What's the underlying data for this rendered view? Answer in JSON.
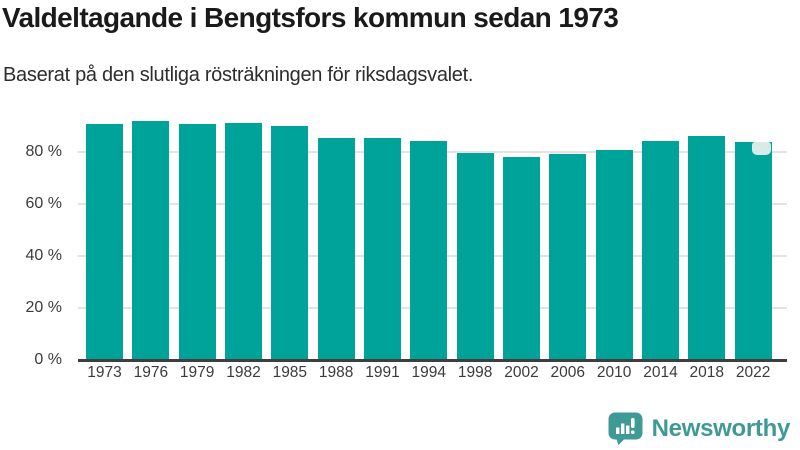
{
  "header": {
    "title": "Valdeltagande i Bengtsfors kommun sedan 1973",
    "subtitle": "Baserat på den slutliga rösträkningen för riksdagsvalet."
  },
  "chart_data": {
    "type": "bar",
    "title": "Valdeltagande i Bengtsfors kommun sedan 1973",
    "subtitle": "Baserat på den slutliga rösträkningen för riksdagsvalet.",
    "categories": [
      "1973",
      "1976",
      "1979",
      "1982",
      "1985",
      "1988",
      "1991",
      "1994",
      "1998",
      "2002",
      "2006",
      "2010",
      "2014",
      "2018",
      "2022"
    ],
    "values": [
      90.4,
      91.9,
      90.7,
      91.1,
      89.7,
      85.3,
      85.3,
      84.1,
      79.6,
      78.0,
      79.0,
      80.7,
      84.1,
      85.8,
      83.5
    ],
    "unit": "%",
    "ylim": [
      0,
      100
    ],
    "ytick_values": [
      0,
      20,
      40,
      60,
      80
    ],
    "ytick_labels": [
      "0 %",
      "20 %",
      "40 %",
      "60 %",
      "80 %"
    ],
    "grid": "horizontal",
    "legend": "none",
    "bar_color": "#00a39a",
    "axis_line_color": "#3e3e3e",
    "gridline_color": "#e3e3e3",
    "last_bar_marker": true,
    "last_bar_marker_color": "#d7ebe7"
  },
  "footer": {
    "logo_text": "Newsworthy",
    "logo_color": "#3f9a95",
    "logo_icon": "newsworthy-chart-bubble-icon"
  }
}
